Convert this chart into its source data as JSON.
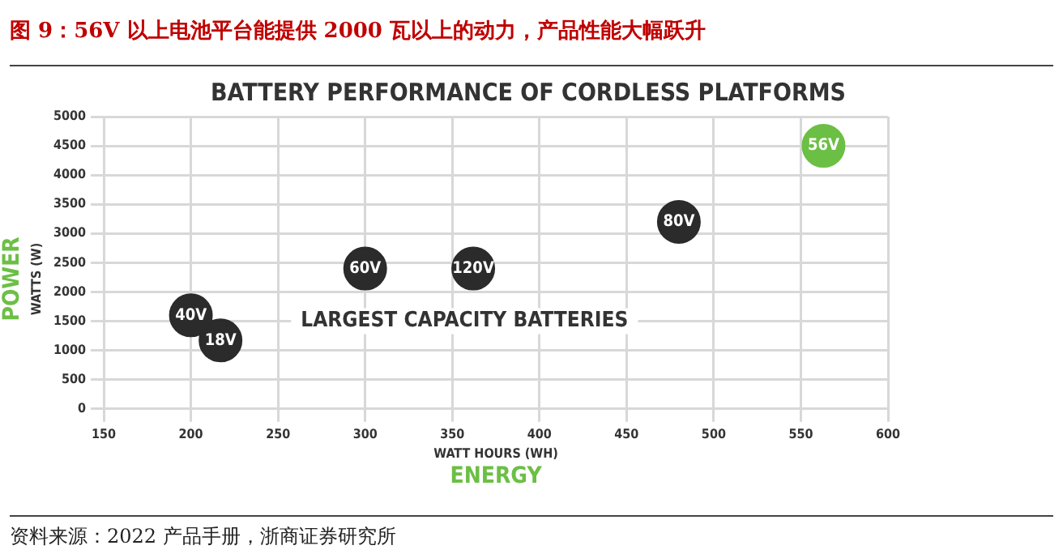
{
  "chart_data": {
    "type": "scatter",
    "title": "图 9：56V 以上电池平台能提供 2000 瓦以上的动力，产品性能大幅跃升",
    "subtitle": "BATTERY PERFORMANCE OF CORDLESS PLATFORMS",
    "xlabel": "WATT HOURS (WH)",
    "ylabel": "WATTS (W)",
    "series": [
      {
        "name": "40V",
        "color": "#2b2b2b",
        "x": [
          200
        ],
        "values": [
          1600
        ]
      },
      {
        "name": "18V",
        "color": "#2b2b2b",
        "x": [
          217
        ],
        "values": [
          1170
        ]
      },
      {
        "name": "60V",
        "color": "#2b2b2b",
        "x": [
          300
        ],
        "values": [
          2400
        ]
      },
      {
        "name": "120V",
        "color": "#2b2b2b",
        "x": [
          362
        ],
        "values": [
          2400
        ]
      },
      {
        "name": "80V",
        "color": "#2b2b2b",
        "x": [
          480
        ],
        "values": [
          3200
        ]
      },
      {
        "name": "56V",
        "color": "#6cbf45",
        "x": [
          563
        ],
        "values": [
          4500
        ]
      }
    ],
    "xlim": [
      150,
      600
    ],
    "xticks": [
      150,
      200,
      250,
      300,
      350,
      400,
      450,
      500,
      550,
      600
    ],
    "ylim": [
      0,
      5000
    ],
    "yticks": [
      0,
      500,
      1000,
      1500,
      2000,
      2500,
      3000,
      3500,
      4000,
      4500,
      5000
    ],
    "grid": true,
    "legend": false,
    "marker": "circle",
    "annotations": [
      "POWER",
      "ENERGY",
      "LARGEST CAPACITY BATTERIES",
      "资料来源：2022 产品手册，浙商证券研究所"
    ]
  }
}
